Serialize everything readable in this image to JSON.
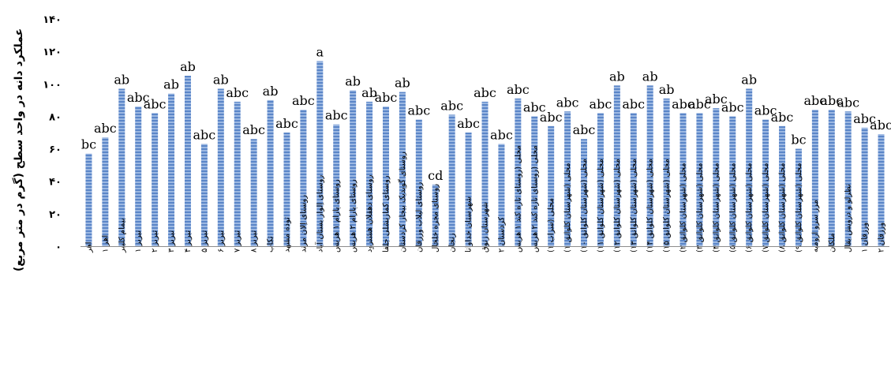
{
  "chart_data": {
    "type": "bar",
    "title": "",
    "xlabel": "",
    "ylabel": "عملکرد دانه در واحد سطح (گرم در متر مربع)",
    "ylim": [
      0,
      140
    ],
    "yticks": [
      0,
      20,
      40,
      60,
      80,
      100,
      120,
      140
    ],
    "ytick_labels": [
      "۰",
      "۲۰",
      "۴۰",
      "۶۰",
      "۸۰",
      "۱۰۰",
      "۱۲۰",
      "۱۴۰"
    ],
    "grid": false,
    "legend": "none",
    "bar_color": "#5b86c8",
    "bar_stripe_color": "#9cb8e2",
    "categories": [
      "اهر",
      "اهر ۱",
      "بیمام کلیبر",
      "تبریز ۱",
      "تبریز ۲",
      "تبریز ۳",
      "تبریز ۴",
      "تبریز ۵",
      "تبریز ۶",
      "تبریز ۷",
      "تبریز ۸",
      "تکاب",
      "توده مشهد",
      "روستای اِلان مرند",
      "روستای اِلوار بستان آباد",
      "روستای پارام ۱ هریس",
      "روستای پارام ۲ هریس",
      "روستای دهقلان هشترود",
      "روستای کماریشلی جلفا",
      "روستای گوبدیک بیجار کردستان",
      "روستای لیلاب ورزقان",
      "روستای مجره خلخال",
      "زنجان",
      "شهرستان خداوانا",
      "شهرستان زنوق",
      "کردستان ۲",
      "محلی (روستای تازه کند ۱ هریس",
      "محلی (روستای تازه کند ۲ هریس",
      "محلی (سراب ۱)",
      "محلی (شهرستان کلوانق ۱)",
      "محلی (شهرستان کلوانق ۱۰)",
      "محلی (شهرستان کلوانق ۱۱)",
      "محلی (شهرستان کلوانق ۱۲)",
      "محلی (شهرستان کلوانق ۱۳)",
      "محلی (شهرستان کلوانق ۱۴)",
      "محلی (شهرستان کلوانق ۱۵)",
      "محلی (شهرستان کلوانق ۲)",
      "محلی (شهرستان کلوانق ۳)",
      "محلی (شهرستان کلوانق ۴)",
      "محلی (شهرستان کلوانق ۵)",
      "محلی (شهرستان کلوانق ۶)",
      "محلی (شهرستان کلوانق ۷)",
      "محلی (شهرستان کلوانق ۸)",
      "محلی (شهرستان کلوانق ۹)",
      "مرز سرو ارومیه",
      "ملکان",
      "نظرلو و درویش بقال",
      "ورزقان ۱",
      "ورزقان ۲"
    ],
    "values": [
      57,
      67,
      97,
      86,
      82,
      94,
      105,
      63,
      97,
      89,
      66,
      90,
      70,
      84,
      114,
      75,
      96,
      89,
      86,
      95,
      78,
      38,
      81,
      70,
      89,
      63,
      91,
      80,
      74,
      83,
      66,
      82,
      99,
      82,
      99,
      91,
      82,
      82,
      85,
      80,
      97,
      78,
      74,
      60,
      84,
      84,
      83,
      73,
      69
    ],
    "labels": [
      "bc",
      "abc",
      "ab",
      "abc",
      "abc",
      "ab",
      "ab",
      "abc",
      "ab",
      "abc",
      "abc",
      "ab",
      "abc",
      "abc",
      "a",
      "abc",
      "ab",
      "ab",
      "abc",
      "ab",
      "abc",
      "cd",
      "abc",
      "abc",
      "abc",
      "abc",
      "abc",
      "abc",
      "abc",
      "abc",
      "abc",
      "abc",
      "ab",
      "abc",
      "ab",
      "ab",
      "abc",
      "abc",
      "abc",
      "abc",
      "ab",
      "abc",
      "abc",
      "bc",
      "abc",
      "abc",
      "abc",
      "abc",
      "abc"
    ]
  }
}
